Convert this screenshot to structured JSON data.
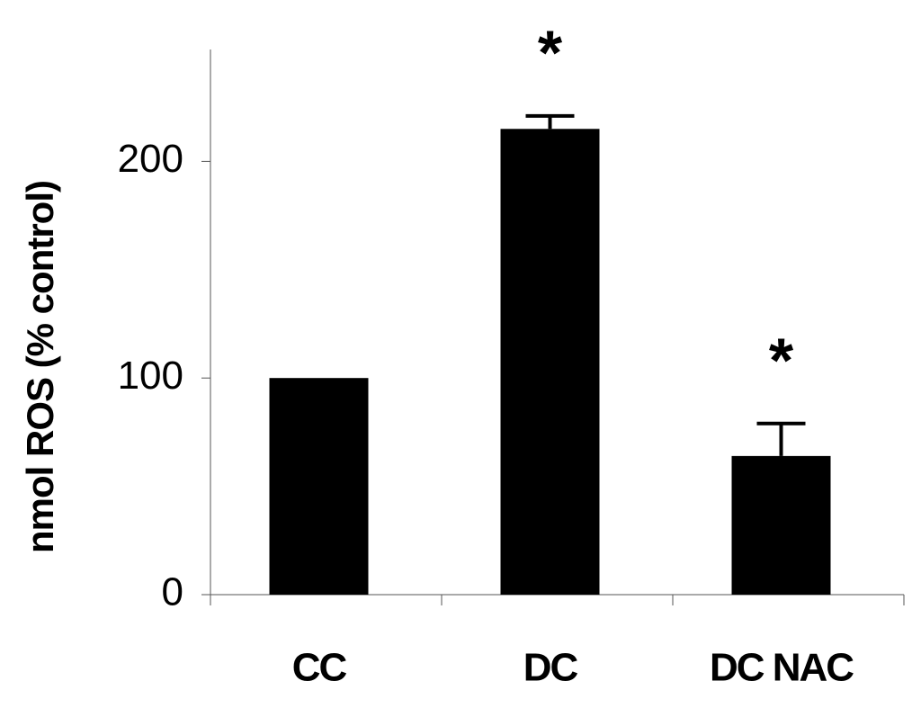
{
  "chart_data": {
    "type": "bar",
    "y_label": "nmol ROS (% control)",
    "categories": [
      "CC",
      "DC",
      "DC NAC"
    ],
    "values": [
      100,
      215,
      64
    ],
    "errors": [
      0,
      6,
      15
    ],
    "color": "#000000",
    "ylim": [
      0,
      250
    ],
    "yticks": [
      0,
      100,
      200
    ],
    "annotations": [
      {
        "category": "DC",
        "text": "*"
      },
      {
        "category": "DC NAC",
        "text": "*"
      }
    ]
  }
}
